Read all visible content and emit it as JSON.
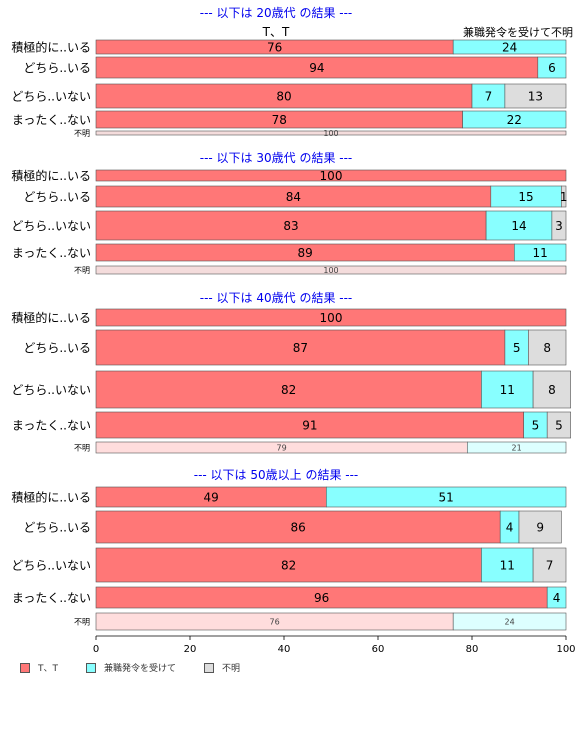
{
  "colors": {
    "tt": "#ff7777",
    "kenshoku": "#88ffff",
    "fumei": "#dddddd",
    "title": "#0000ee"
  },
  "chart_data": {
    "type": "bar",
    "orientation": "horizontal",
    "stacked": true,
    "xlim": [
      0,
      100
    ],
    "xticks": [
      0,
      20,
      40,
      60,
      80,
      100
    ],
    "series_names": [
      "T、T",
      "兼職発令を受けて",
      "不明"
    ],
    "top_column_headers": [
      "T、T",
      "兼職発令を受けて不明"
    ],
    "legend": {
      "placement": "bottom-left",
      "items": [
        "T、T",
        "兼職発令を受けて",
        "不明"
      ]
    },
    "panels": [
      {
        "title": "--- 以下は 20歳代 の結果 ---",
        "categories": [
          "積極的に..いる",
          "どちら..いる",
          "どちら..いない",
          "まったく..ない",
          "不明"
        ],
        "values": [
          [
            76,
            24,
            0
          ],
          [
            94,
            6,
            0
          ],
          [
            80,
            7,
            13
          ],
          [
            78,
            22,
            0
          ],
          [
            0,
            0,
            100
          ]
        ]
      },
      {
        "title": "--- 以下は 30歳代 の結果 ---",
        "categories": [
          "積極的に..いる",
          "どちら..いる",
          "どちら..いない",
          "まったく..ない",
          "不明"
        ],
        "values": [
          [
            100,
            0,
            0
          ],
          [
            84,
            15,
            1
          ],
          [
            83,
            14,
            3
          ],
          [
            89,
            11,
            0
          ],
          [
            0,
            0,
            100
          ]
        ]
      },
      {
        "title": "--- 以下は 40歳代 の結果 ---",
        "categories": [
          "積極的に..いる",
          "どちら..いる",
          "どちら..いない",
          "まったく..ない",
          "不明"
        ],
        "values": [
          [
            100,
            0,
            0
          ],
          [
            87,
            5,
            8
          ],
          [
            82,
            11,
            8
          ],
          [
            91,
            5,
            5
          ],
          [
            79,
            21,
            0
          ]
        ]
      },
      {
        "title": "--- 以下は 50歳以上 の結果 ---",
        "categories": [
          "積極的に..いる",
          "どちら..いる",
          "どちら..いない",
          "まったく..ない",
          "不明"
        ],
        "values": [
          [
            49,
            51,
            0
          ],
          [
            86,
            4,
            9
          ],
          [
            82,
            11,
            7
          ],
          [
            96,
            4,
            0
          ],
          [
            76,
            24,
            0
          ]
        ]
      }
    ]
  }
}
